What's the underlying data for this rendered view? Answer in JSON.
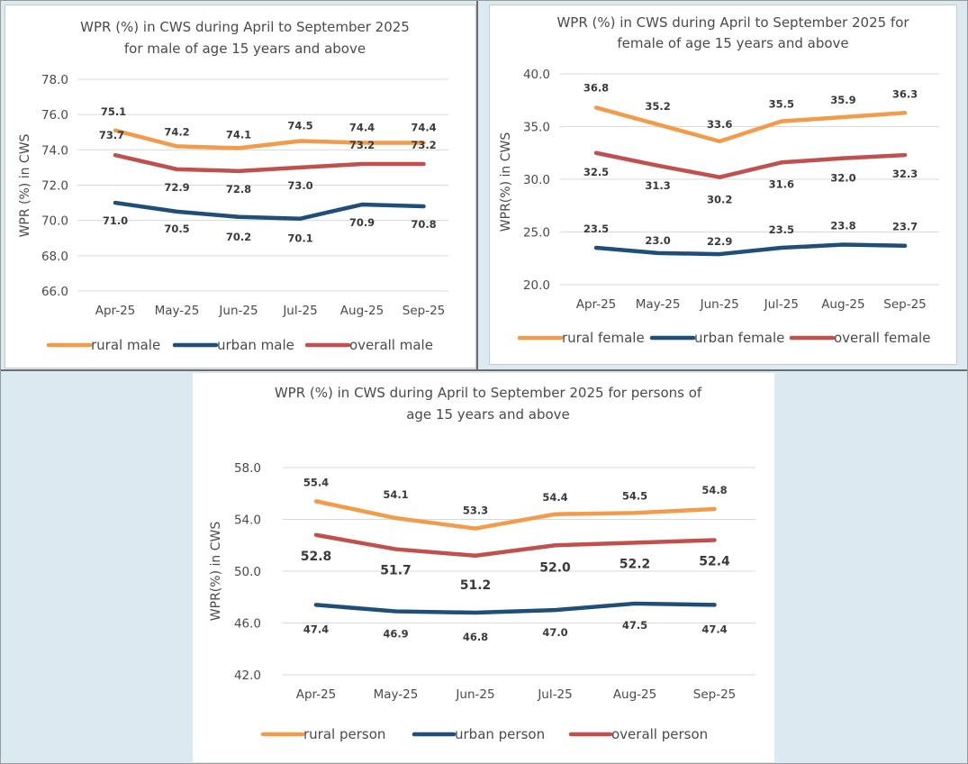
{
  "chart_data": [
    {
      "type": "line",
      "title": "WPR (%) in CWS during April to September  2025 for male of age 15 years and above",
      "title_lines": [
        "WPR (%) in CWS during April to September  2025",
        "for male of age 15 years and above"
      ],
      "ylabel": "WPR (%) in CWS",
      "xlabel": "",
      "categories": [
        "Apr-25",
        "May-25",
        "Jun-25",
        "Jul-25",
        "Aug-25",
        "Sep-25"
      ],
      "ylim": [
        66,
        78
      ],
      "yticks": [
        "66.0",
        "68.0",
        "70.0",
        "72.0",
        "74.0",
        "76.0",
        "78.0"
      ],
      "grid": true,
      "legend_position": "bottom",
      "series": [
        {
          "name": "rural male",
          "color": "#f29b4a",
          "values": [
            75.1,
            74.2,
            74.1,
            74.5,
            74.4,
            74.4
          ],
          "labels": [
            "75.1",
            "74.2",
            "74.1",
            "74.5",
            "74.4",
            "74.4"
          ]
        },
        {
          "name": "urban male",
          "color": "#1f4e79",
          "values": [
            71.0,
            70.5,
            70.2,
            70.1,
            70.9,
            70.8
          ],
          "labels": [
            "71.0",
            "70.5",
            "70.2",
            "70.1",
            "70.9",
            "70.8"
          ]
        },
        {
          "name": "overall male",
          "color": "#c0504d",
          "values": [
            73.7,
            72.9,
            72.8,
            73.0,
            73.2,
            73.2
          ],
          "labels": [
            "73.7",
            "72.9",
            "72.8",
            "73.0",
            "73.2",
            "73.2"
          ]
        }
      ]
    },
    {
      "type": "line",
      "title": "WPR (%) in CWS during April to September  2025 for female of age 15 years and above",
      "title_lines": [
        "WPR (%) in CWS during April to September  2025 for",
        "female of age 15 years and above"
      ],
      "ylabel": "WPR(%) in CWS",
      "xlabel": "",
      "categories": [
        "Apr-25",
        "May-25",
        "Jun-25",
        "Jul-25",
        "Aug-25",
        "Sep-25"
      ],
      "ylim": [
        20,
        40
      ],
      "yticks": [
        "20.0",
        "25.0",
        "30.0",
        "35.0",
        "40.0"
      ],
      "grid": true,
      "legend_position": "bottom",
      "series": [
        {
          "name": "rural female",
          "color": "#f29b4a",
          "values": [
            36.8,
            35.2,
            33.6,
            35.5,
            35.9,
            36.3
          ],
          "labels": [
            "36.8",
            "35.2",
            "33.6",
            "35.5",
            "35.9",
            "36.3"
          ]
        },
        {
          "name": "urban female",
          "color": "#1f4e79",
          "values": [
            23.5,
            23.0,
            22.9,
            23.5,
            23.8,
            23.7
          ],
          "labels": [
            "23.5",
            "23.0",
            "22.9",
            "23.5",
            "23.8",
            "23.7"
          ]
        },
        {
          "name": "overall female",
          "color": "#c0504d",
          "values": [
            32.5,
            31.3,
            30.2,
            31.6,
            32.0,
            32.3
          ],
          "labels": [
            "32.5",
            "31.3",
            "30.2",
            "31.6",
            "32.0",
            "32.3"
          ]
        }
      ]
    },
    {
      "type": "line",
      "title": "WPR (%) in CWS during April to September  2025 for persons of age 15 years and above",
      "title_lines": [
        "WPR (%) in CWS during April to September  2025 for persons of",
        "age 15 years and above"
      ],
      "ylabel": "WPR(%) in CWS",
      "xlabel": "",
      "categories": [
        "Apr-25",
        "May-25",
        "Jun-25",
        "Jul-25",
        "Aug-25",
        "Sep-25"
      ],
      "ylim": [
        42,
        58
      ],
      "yticks": [
        "42.0",
        "46.0",
        "50.0",
        "54.0",
        "58.0"
      ],
      "grid": true,
      "legend_position": "bottom",
      "series": [
        {
          "name": "rural person",
          "color": "#f29b4a",
          "values": [
            55.4,
            54.1,
            53.3,
            54.4,
            54.5,
            54.8
          ],
          "labels": [
            "55.4",
            "54.1",
            "53.3",
            "54.4",
            "54.5",
            "54.8"
          ]
        },
        {
          "name": "urban person",
          "color": "#1f4e79",
          "values": [
            47.4,
            46.9,
            46.8,
            47.0,
            47.5,
            47.4
          ],
          "labels": [
            "47.4",
            "46.9",
            "46.8",
            "47.0",
            "47.5",
            "47.4"
          ]
        },
        {
          "name": "overall person",
          "color": "#c0504d",
          "values": [
            52.8,
            51.7,
            51.2,
            52.0,
            52.2,
            52.4
          ],
          "labels": [
            "52.8",
            "51.7",
            "51.2",
            "52.0",
            "52.2",
            "52.4"
          ]
        }
      ]
    }
  ]
}
